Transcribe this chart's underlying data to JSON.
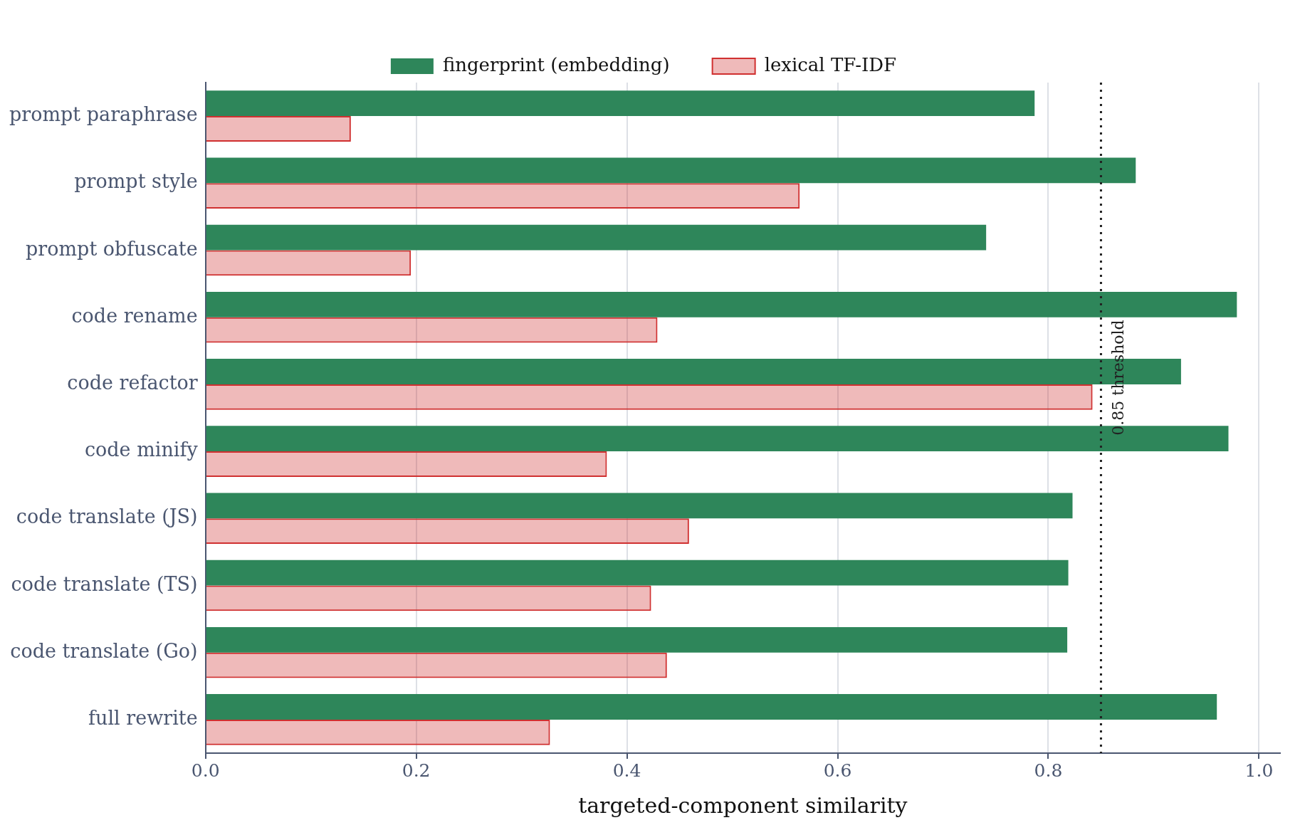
{
  "chart_data": {
    "type": "bar",
    "orientation": "horizontal",
    "xlabel": "targeted-component similarity",
    "categories": [
      "prompt paraphrase",
      "prompt style",
      "prompt obfuscate",
      "code rename",
      "code refactor",
      "code minify",
      "code translate (JS)",
      "code translate (TS)",
      "code translate (Go)",
      "full rewrite"
    ],
    "series": [
      {
        "name": "fingerprint (embedding)",
        "color": "#2e865a",
        "values": [
          0.787,
          0.883,
          0.741,
          0.979,
          0.926,
          0.971,
          0.823,
          0.819,
          0.818,
          0.96
        ]
      },
      {
        "name": "lexical TF-IDF",
        "color": "#d03030",
        "values": [
          0.138,
          0.564,
          0.195,
          0.429,
          0.842,
          0.381,
          0.459,
          0.423,
          0.438,
          0.327
        ]
      }
    ],
    "xlim": [
      0,
      1.02
    ],
    "xticks": [
      {
        "value": 0,
        "label": "0.0"
      },
      0.2,
      0.4,
      0.6,
      0.8,
      {
        "value": 1,
        "label": "1.0"
      }
    ],
    "ref_lines": [
      {
        "axis": "x",
        "value": 0.85,
        "label": "0.85 threshold",
        "line_style": "dotted",
        "color": "#222222"
      }
    ],
    "grid": "x",
    "legend": "top"
  }
}
